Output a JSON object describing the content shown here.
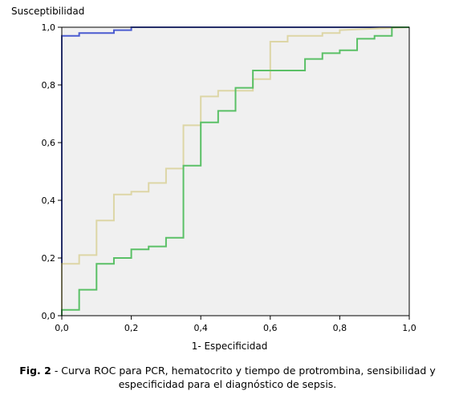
{
  "chart_data": {
    "type": "line",
    "ylabel": "Susceptibilidad",
    "xlabel": "1- Especificidad",
    "xlim": [
      0,
      1
    ],
    "ylim": [
      0,
      1
    ],
    "xticks": [
      "0,0",
      "0,2",
      "0,4",
      "0,6",
      "0,8",
      "1,0"
    ],
    "yticks": [
      "0,0",
      "0,2",
      "0,4",
      "0,6",
      "0,8",
      "1,0"
    ],
    "grid": false,
    "background": "#f0f0f0",
    "series": [
      {
        "color": "#4a5bd0",
        "x": [
          0,
          0,
          0.05,
          0.05,
          0.15,
          0.15,
          0.2,
          0.2,
          1
        ],
        "y": [
          0,
          0.97,
          0.97,
          0.98,
          0.98,
          0.99,
          0.99,
          1,
          1
        ]
      },
      {
        "color": "#ddd6a6",
        "x": [
          0,
          0,
          0.05,
          0.05,
          0.1,
          0.1,
          0.15,
          0.15,
          0.2,
          0.2,
          0.25,
          0.25,
          0.3,
          0.3,
          0.35,
          0.35,
          0.4,
          0.4,
          0.45,
          0.45,
          0.55,
          0.55,
          0.6,
          0.6,
          0.65,
          0.65,
          0.75,
          0.75,
          0.8,
          0.8,
          1
        ],
        "y": [
          0,
          0.18,
          0.18,
          0.21,
          0.21,
          0.33,
          0.33,
          0.42,
          0.42,
          0.43,
          0.43,
          0.46,
          0.46,
          0.51,
          0.51,
          0.66,
          0.66,
          0.76,
          0.76,
          0.78,
          0.78,
          0.82,
          0.82,
          0.95,
          0.95,
          0.97,
          0.97,
          0.98,
          0.98,
          0.99,
          1
        ]
      },
      {
        "color": "#5ac066",
        "x": [
          0,
          0,
          0.05,
          0.05,
          0.1,
          0.1,
          0.15,
          0.15,
          0.2,
          0.2,
          0.25,
          0.25,
          0.3,
          0.3,
          0.35,
          0.35,
          0.4,
          0.4,
          0.45,
          0.45,
          0.5,
          0.5,
          0.55,
          0.55,
          0.7,
          0.7,
          0.75,
          0.75,
          0.8,
          0.8,
          0.85,
          0.85,
          0.9,
          0.9,
          0.95,
          0.95,
          1
        ],
        "y": [
          0,
          0.02,
          0.02,
          0.09,
          0.09,
          0.18,
          0.18,
          0.2,
          0.2,
          0.23,
          0.23,
          0.24,
          0.24,
          0.27,
          0.27,
          0.52,
          0.52,
          0.67,
          0.67,
          0.71,
          0.71,
          0.79,
          0.79,
          0.85,
          0.85,
          0.89,
          0.89,
          0.91,
          0.91,
          0.92,
          0.92,
          0.96,
          0.96,
          0.97,
          0.97,
          1,
          1
        ]
      }
    ]
  },
  "caption": {
    "label": "Fig. 2",
    "text": " - Curva ROC para PCR, hematocrito y tiempo de protrombina, sensibilidad y especificidad para el diagnóstico de sepsis."
  }
}
